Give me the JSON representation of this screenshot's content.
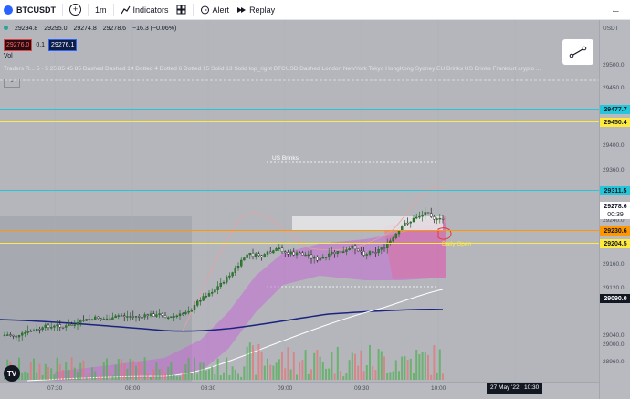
{
  "toolbar": {
    "symbol": "BTCUSDT",
    "interval": "1m",
    "indicators_label": "Indicators",
    "alert_label": "Alert",
    "replay_label": "Replay"
  },
  "ohlc": {
    "open": "29294.8",
    "high": "29295.0",
    "low": "29274.8",
    "close": "29278.6",
    "change": "−16.3 (−0.06%)"
  },
  "indicator_row": {
    "value_red": "29276.0",
    "value_mid": "0.1",
    "value_blue": "29276.1"
  },
  "vol_label": "Vol",
  "traders_label": "Traders R...  5 · 5 25 85 45 85 Dashed Dashed 14 Dotted 4 Dotted 6 Dotted 15 Solid 13 Solid top_right BTCUSD Dashed London NewYork Tokyo HongKong Sydney EU Brinks US Brinks Frankfurt crypto ...",
  "price_axis": {
    "ticks": [
      "29500.0",
      "29450.0",
      "29400.0",
      "29360.0",
      "29320.0",
      "29280.0",
      "29240.0",
      "29160.0",
      "29120.0",
      "29040.0",
      "29000.0",
      "28960.0"
    ],
    "tags": {
      "p29477": "29477.7",
      "p29450": "29450.4",
      "p29311": "29311.5",
      "p29278": "29278.6",
      "countdown": "00:39",
      "p29230": "29230.6",
      "p29204": "29204.5",
      "p29090": "29090.0"
    },
    "currency": "USDT"
  },
  "time_axis": [
    "07:30",
    "08:00",
    "08:30",
    "09:00",
    "09:30",
    "10:00"
  ],
  "time_cursor": "27 May '22   10:30",
  "chart_text": {
    "us_brinks": "US Brinks",
    "daily_open": "Daily Open"
  },
  "colors": {
    "cyan": "#26c6da",
    "yellow": "#ffeb3b",
    "orange": "#ff9800",
    "navy": "#1a237e",
    "red": "#e53935"
  }
}
